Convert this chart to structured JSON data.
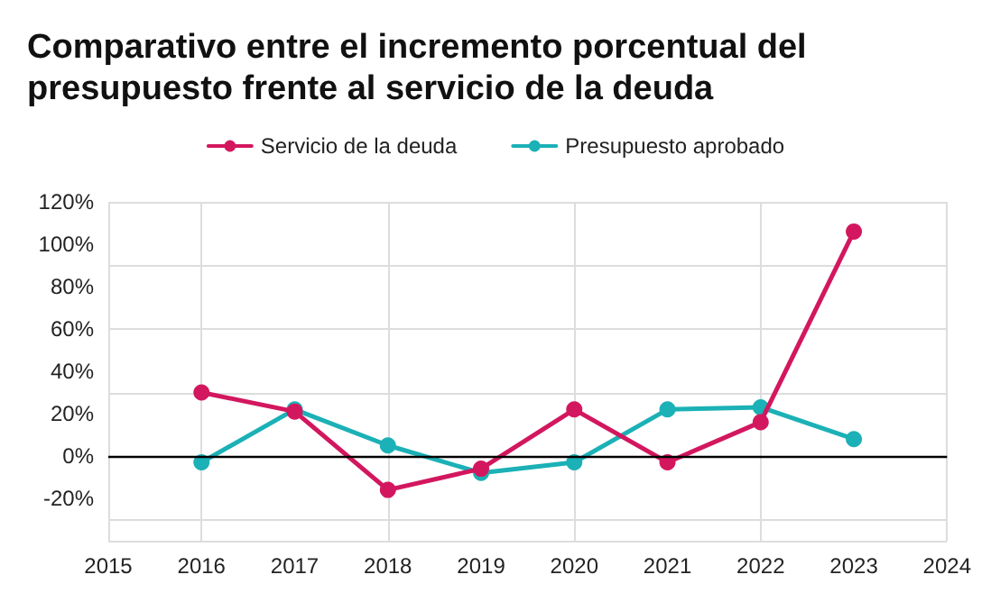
{
  "chart_data": {
    "type": "line",
    "title": "Comparativo entre el incremento porcentual del presupuesto frente al servicio de la deuda",
    "x": [
      2016,
      2017,
      2018,
      2019,
      2020,
      2021,
      2022,
      2023
    ],
    "series": [
      {
        "name": "Servicio de la deuda",
        "color": "#d3175f",
        "values": [
          30,
          21,
          -16,
          -6,
          22,
          -3,
          16,
          106
        ]
      },
      {
        "name": "Presupuesto aprobado",
        "color": "#1bb1b6",
        "values": [
          -3,
          22,
          5,
          -8,
          -3,
          22,
          23,
          8
        ]
      }
    ],
    "xlim": [
      2015,
      2024
    ],
    "xticks": [
      2015,
      2016,
      2017,
      2018,
      2019,
      2020,
      2021,
      2022,
      2023,
      2024
    ],
    "ylim": [
      -40,
      120
    ],
    "yticks": [
      {
        "value": -40,
        "label": null
      },
      {
        "value": -20,
        "label": "-20%"
      },
      {
        "value": 0,
        "label": "0%"
      },
      {
        "value": 20,
        "label": "20%"
      },
      {
        "value": 40,
        "label": "40%"
      },
      {
        "value": 60,
        "label": "60%"
      },
      {
        "value": 80,
        "label": "80%"
      },
      {
        "value": 100,
        "label": "100%"
      },
      {
        "value": 120,
        "label": "120%"
      }
    ],
    "ref_lines": [
      {
        "axis": "y",
        "value": 0,
        "label": null,
        "color": "#000000"
      }
    ],
    "grid": true,
    "legend": "top",
    "marker": "circle",
    "line_style": "solid"
  }
}
